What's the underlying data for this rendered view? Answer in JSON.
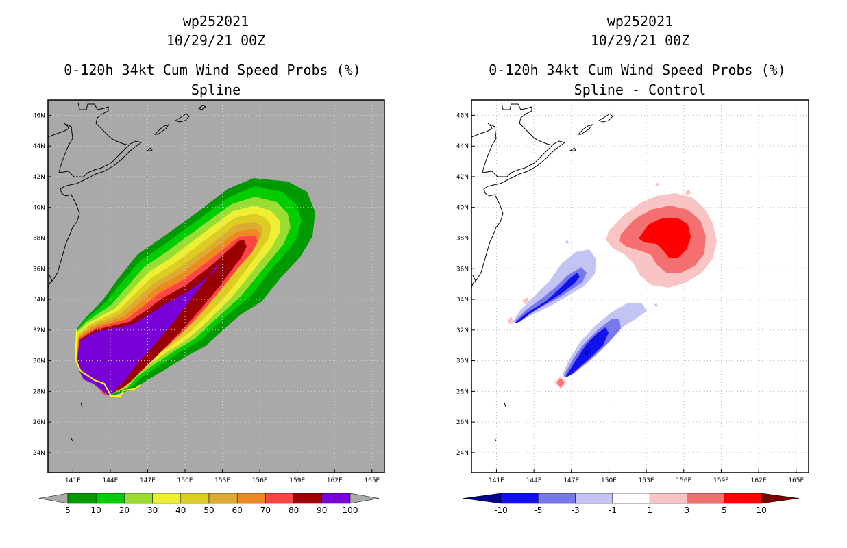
{
  "left": {
    "title_lines": [
      "wp252021",
      "10/29/21 00Z"
    ],
    "subtitle_lines": [
      "0-120h 34kt Cum Wind Speed Probs (%)",
      "Spline"
    ]
  },
  "right": {
    "title_lines": [
      "wp252021",
      "10/29/21 00Z"
    ],
    "subtitle_lines": [
      "0-120h 34kt Cum Wind Speed Probs (%)",
      "Spline - Control"
    ]
  },
  "chart_data": [
    {
      "type": "heatmap",
      "title": "0-120h 34kt Cum Wind Speed Probs (%)",
      "subtitle": "Spline",
      "xlabels": [
        "141E",
        "144E",
        "147E",
        "150E",
        "153E",
        "156E",
        "159E",
        "162E",
        "165E"
      ],
      "ylabels": [
        "46N",
        "44N",
        "42N",
        "40N",
        "38N",
        "36N",
        "34N",
        "32N",
        "30N",
        "28N",
        "26N",
        "24N"
      ],
      "xlim": [
        139.0,
        166.0
      ],
      "ylim": [
        22.7,
        47.0
      ],
      "grid": true,
      "background": "#a9a9a9",
      "colorbar": {
        "labels": [
          "5",
          "10",
          "20",
          "30",
          "40",
          "50",
          "60",
          "70",
          "80",
          "90",
          "100"
        ],
        "colors": [
          "#009900",
          "#00cc00",
          "#99dd33",
          "#eeee33",
          "#ddcc22",
          "#ddaa33",
          "#ee8822",
          "#ff4444",
          "#990000",
          "#7a00d8"
        ],
        "end_colors": [
          "#a9a9a9",
          "#a9a9a9"
        ]
      },
      "contour_colors": [
        "#009900",
        "#00cc00",
        "#99dd33",
        "#eeee33",
        "#ddcc22",
        "#ddaa33",
        "#ee8822",
        "#ff4444",
        "#990000",
        "#7a00d8"
      ]
    },
    {
      "type": "heatmap",
      "title": "0-120h 34kt Cum Wind Speed Probs (%)",
      "subtitle": "Spline - Control",
      "xlabels": [
        "141E",
        "144E",
        "147E",
        "150E",
        "153E",
        "156E",
        "159E",
        "162E",
        "165E"
      ],
      "ylabels": [
        "46N",
        "44N",
        "42N",
        "40N",
        "38N",
        "36N",
        "34N",
        "32N",
        "30N",
        "28N",
        "26N",
        "24N"
      ],
      "xlim": [
        139.0,
        166.0
      ],
      "ylim": [
        22.7,
        47.0
      ],
      "grid": true,
      "background": "#ffffff",
      "colorbar": {
        "labels": [
          "-10",
          "-5",
          "-3",
          "-1",
          "1",
          "3",
          "5",
          "10"
        ],
        "colors": [
          "#0000cc",
          "#1111ee",
          "#7777ee",
          "#c4c4f4",
          "#ffffff",
          "#f9c4c4",
          "#f47070",
          "#ff0000",
          "#770000"
        ],
        "end_colors": [
          "#000088",
          "#770000"
        ]
      }
    }
  ]
}
